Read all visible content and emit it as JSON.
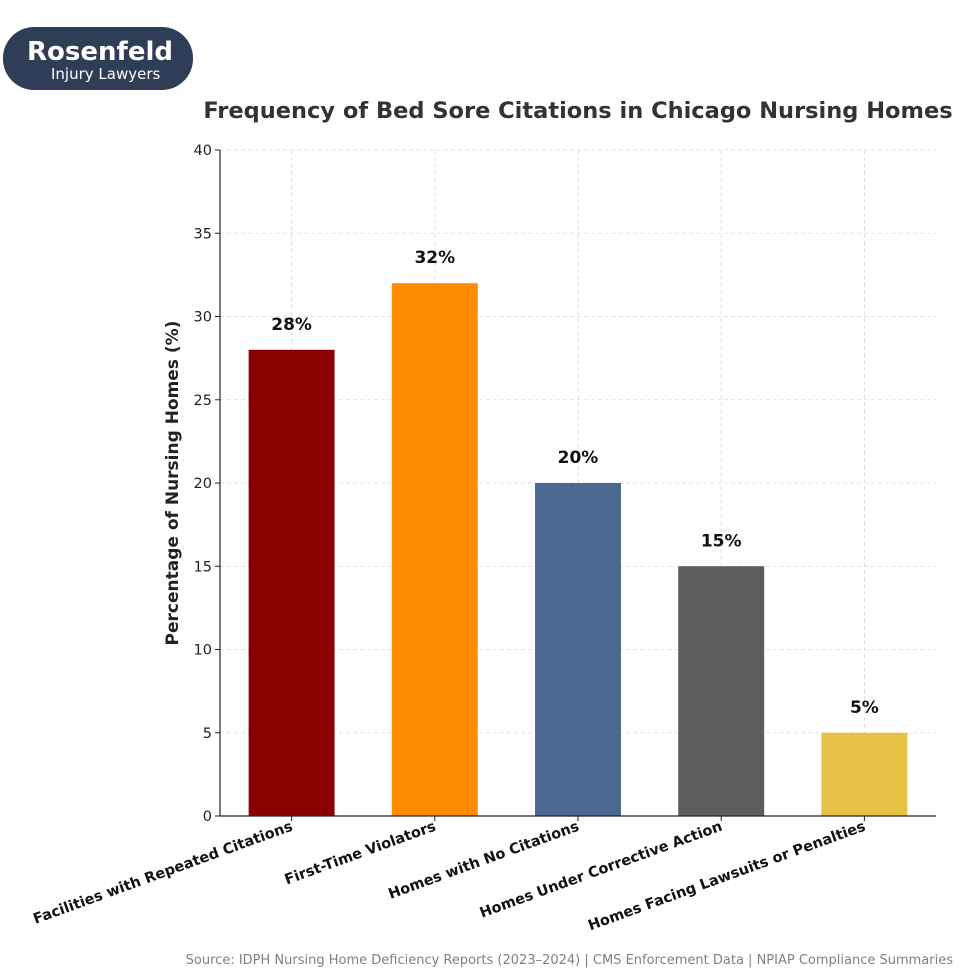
{
  "logo": {
    "brand": "Rosenfeld",
    "subtitle": "Injury Lawyers",
    "bg_color": "#2e3e57",
    "text_color": "#ffffff"
  },
  "source_note": "Source: IDPH Nursing Home Deficiency Reports (2023–2024) | CMS Enforcement Data | NPIAP Compliance Summaries",
  "chart_data": {
    "type": "bar",
    "title": "Frequency of Bed Sore Citations in Chicago Nursing Homes",
    "xlabel": "",
    "ylabel": "Percentage of Nursing Homes (%)",
    "ylim": [
      0,
      40
    ],
    "yticks": [
      0,
      5,
      10,
      15,
      20,
      25,
      30,
      35,
      40
    ],
    "grid": true,
    "categories": [
      "Facilities with Repeated Citations",
      "First-Time Violators",
      "Homes with No Citations",
      "Homes Under Corrective Action",
      "Homes Facing Lawsuits or Penalties"
    ],
    "values": [
      28,
      32,
      20,
      15,
      5
    ],
    "value_labels": [
      "28%",
      "32%",
      "20%",
      "15%",
      "5%"
    ],
    "colors": [
      "#8b0000",
      "#ff8c00",
      "#4a6890",
      "#5c5c5c",
      "#e6c244"
    ]
  }
}
